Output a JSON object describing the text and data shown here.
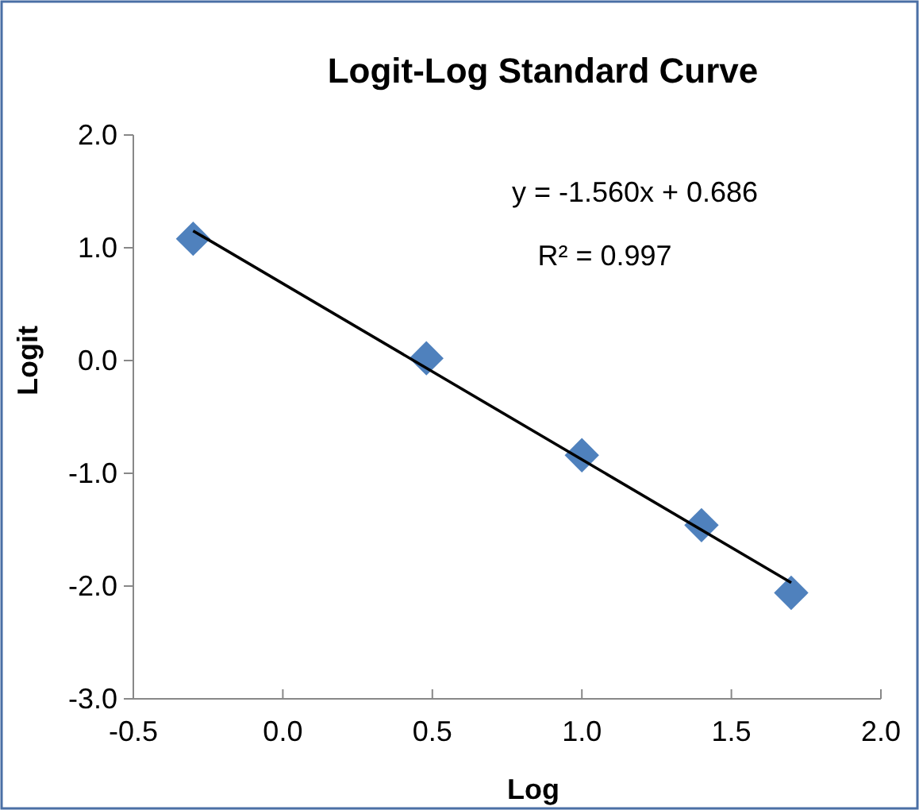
{
  "chart_data": {
    "type": "scatter",
    "title": "Logit-Log Standard Curve",
    "xlabel": "Log",
    "ylabel": "Logit",
    "xlim": [
      -0.5,
      2.0
    ],
    "xticks": [
      {
        "value": -0.5,
        "label": "-0.5"
      },
      {
        "value": 0,
        "label": "0.0"
      },
      {
        "value": 0.5,
        "label": "0.5"
      },
      {
        "value": 1,
        "label": "1.0"
      },
      {
        "value": 1.5,
        "label": "1.5"
      },
      {
        "value": 2,
        "label": "2.0"
      }
    ],
    "ylim": [
      -3.0,
      2.0
    ],
    "yticks": [
      {
        "value": -3,
        "label": "-3.0"
      },
      {
        "value": -2,
        "label": "-2.0"
      },
      {
        "value": -1,
        "label": "-1.0"
      },
      {
        "value": 0,
        "label": "0.0"
      },
      {
        "value": 1,
        "label": "1.0"
      },
      {
        "value": 2,
        "label": "2.0"
      }
    ],
    "grid": false,
    "series": [
      {
        "marker": "diamond",
        "color": "#4f81bd",
        "x": [
          -0.3,
          0.48,
          1.0,
          1.4,
          1.7
        ],
        "values": [
          1.08,
          0.02,
          -0.84,
          -1.46,
          -2.06
        ]
      },
      {
        "type": "line",
        "color": "#000000",
        "x": [
          -0.3,
          1.7
        ],
        "values": [
          1.15,
          -1.97
        ]
      }
    ],
    "annotations": [
      "y = -1.560x + 0.686",
      "R² = 0.997"
    ]
  }
}
